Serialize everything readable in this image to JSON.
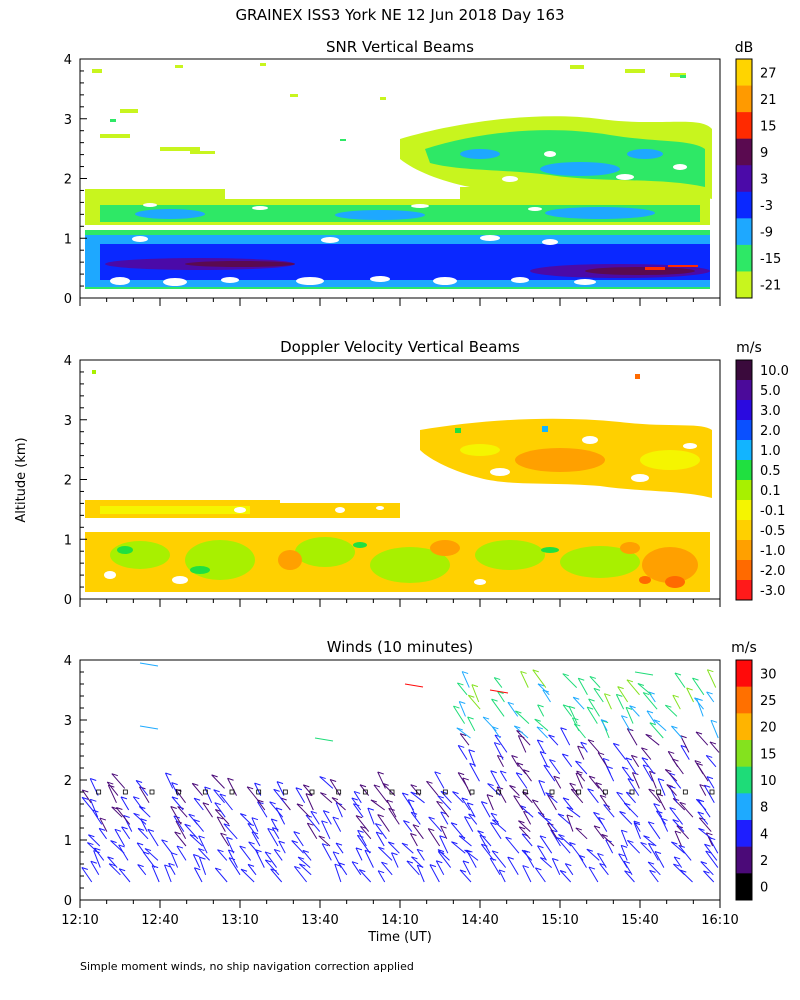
{
  "header": {
    "title": "GRAINEX ISS3 York NE  12 Jun 2018 Day 163"
  },
  "footer": {
    "note": "Simple moment winds, no ship navigation correction applied"
  },
  "axes": {
    "ylabel": "Altitude (km)",
    "xlabel": "Time (UT)",
    "xticks": [
      "12:10",
      "12:40",
      "13:10",
      "13:40",
      "14:10",
      "14:40",
      "15:10",
      "15:40",
      "16:10"
    ],
    "yticks": [
      "0",
      "1",
      "2",
      "3",
      "4"
    ]
  },
  "chart_data": [
    {
      "type": "heatmap",
      "title": "SNR Vertical Beams",
      "unit": "dB",
      "xlabel": "",
      "ylabel": "Altitude (km)",
      "xlim": [
        "12:10",
        "16:10"
      ],
      "ylim": [
        0,
        4
      ],
      "colorbar": {
        "labels": [
          "27",
          "21",
          "15",
          "9",
          "3",
          "-3",
          "-9",
          "-15",
          "-21"
        ],
        "colors": [
          "#ffd400",
          "#ff9a00",
          "#ff2a00",
          "#5a0a50",
          "#4b0aa8",
          "#0a28ff",
          "#1ea8ff",
          "#2ee866",
          "#c8f51e"
        ]
      },
      "features": [
        {
          "alt_from": 0.1,
          "alt_to": 0.9,
          "description": "strong return layer"
        },
        {
          "alt_from": 1.0,
          "alt_to": 1.7,
          "description": "moderate return layer"
        },
        {
          "alt_from": 2.0,
          "alt_to": 3.3,
          "description": "patchy return after 14:20"
        }
      ]
    },
    {
      "type": "heatmap",
      "title": "Doppler Velocity Vertical Beams",
      "unit": "m/s",
      "xlabel": "",
      "ylabel": "Altitude (km)",
      "xlim": [
        "12:10",
        "16:10"
      ],
      "ylim": [
        0,
        4
      ],
      "colorbar": {
        "labels": [
          "10.0",
          "5.0",
          "3.0",
          "2.0",
          "1.0",
          "0.5",
          "0.1",
          "-0.1",
          "-0.5",
          "-1.0",
          "-2.0",
          "-3.0"
        ],
        "colors": [
          "#3a0a3c",
          "#4b0a9a",
          "#2a0ae0",
          "#0a50ff",
          "#12b4ff",
          "#20e040",
          "#a8f000",
          "#f5f500",
          "#ffd000",
          "#ffa000",
          "#ff6a00",
          "#ff1a1a"
        ]
      },
      "features": [
        {
          "alt_from": 0.1,
          "alt_to": 1.2,
          "description": "mostly -0.5 to 0.1 m/s"
        },
        {
          "alt_from": 1.3,
          "alt_to": 1.6,
          "description": "mostly -0.5 to -0.1 m/s"
        },
        {
          "alt_from": 1.8,
          "alt_to": 2.9,
          "description": "patchy after 14:20"
        }
      ]
    },
    {
      "type": "scatter",
      "title": "Winds (10 minutes)",
      "unit": "m/s",
      "xlabel": "Time (UT)",
      "ylabel": "Altitude (km)",
      "xlim": [
        "12:10",
        "16:10"
      ],
      "ylim": [
        0,
        4
      ],
      "colorbar": {
        "labels": [
          "30",
          "25",
          "20",
          "15",
          "10",
          "8",
          "4",
          "2",
          "0"
        ],
        "colors": [
          "#ff0a0a",
          "#ff7000",
          "#ffb400",
          "#84e21e",
          "#1edc78",
          "#1eaaff",
          "#1e1eff",
          "#4b0a78",
          "#000000"
        ]
      },
      "profile_times": [
        "12:17",
        "12:27",
        "12:37",
        "12:47",
        "12:57",
        "13:07",
        "13:17",
        "13:27",
        "13:37",
        "13:47",
        "13:57",
        "14:07",
        "14:17",
        "14:27",
        "14:37",
        "14:47",
        "14:57",
        "15:07",
        "15:17",
        "15:27",
        "15:37",
        "15:47",
        "15:57",
        "16:07"
      ]
    }
  ]
}
